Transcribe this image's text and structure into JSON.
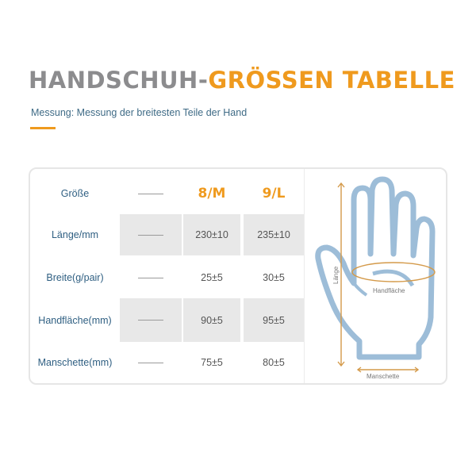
{
  "title": {
    "part1": "HANDSCHUH-",
    "part2": "GRÖSSEN TABELLE"
  },
  "subtitle": "Messung: Messung der breitesten Teile der Hand",
  "table": {
    "header": {
      "label": "Größe",
      "sizes": [
        "8/M",
        "9/L"
      ]
    },
    "rows": [
      {
        "label": "Länge/mm",
        "values": [
          "230±10",
          "235±10"
        ]
      },
      {
        "label": "Breite(g/pair)",
        "values": [
          "25±5",
          "30±5"
        ]
      },
      {
        "label": "Handfläche(mm)",
        "values": [
          "90±5",
          "95±5"
        ]
      },
      {
        "label": "Manschette(mm)",
        "values": [
          "75±5",
          "80±5"
        ]
      }
    ]
  },
  "diagram": {
    "length_label": "Länge",
    "palm_label": "Handfläche",
    "cuff_label": "Manschette"
  },
  "colors": {
    "accent": "#ef9a1e",
    "title_gray": "#8c8c8e",
    "label_blue": "#2f5f82",
    "hand": "#9dbdd8",
    "measure": "#d49a4a"
  }
}
